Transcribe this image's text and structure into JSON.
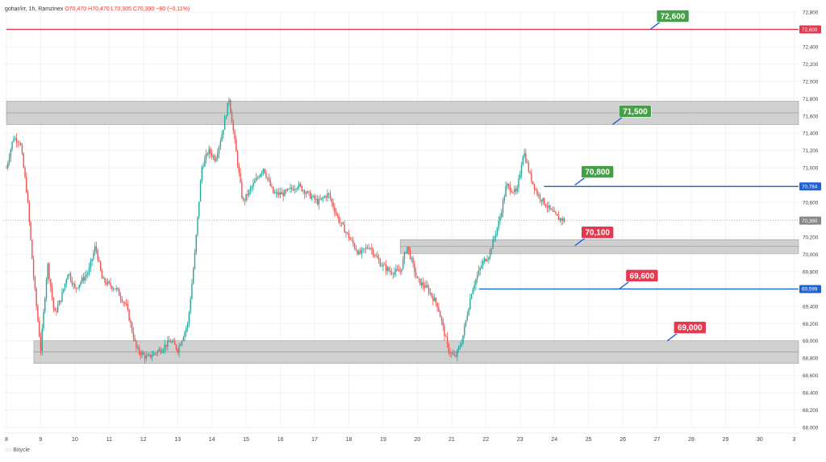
{
  "header": {
    "symbol": "gohar/irr, 1h, Ramzinex",
    "open": "O70,470",
    "high": "H70,470",
    "low": "L70,305",
    "close": "C70,390",
    "change": "−80 (−0.11%)"
  },
  "footer": {
    "brand": "Bitycle"
  },
  "colors": {
    "up": "#26a69a",
    "down": "#ef5350",
    "zone": "#c8c8c8",
    "green_label": "#43a047",
    "red_label": "#e53950",
    "blue_line": "#1e63d6",
    "red_line": "#e53950"
  },
  "chart_data": {
    "type": "candlestick",
    "y_range": [
      68000,
      72800
    ],
    "y_ticks": [
      "72,800",
      "72,600",
      "72,400",
      "72,200",
      "72,000",
      "71,800",
      "71,600",
      "71,400",
      "71,200",
      "71,000",
      "70,800",
      "70,600",
      "70,400",
      "70,200",
      "70,000",
      "69,800",
      "69,600",
      "69,400",
      "69,200",
      "69,000",
      "68,800",
      "68,600",
      "68,400",
      "68,200",
      "68,000"
    ],
    "x_ticks": [
      "8",
      "9",
      "10",
      "11",
      "12",
      "13",
      "14",
      "15",
      "16",
      "17",
      "18",
      "19",
      "20",
      "21",
      "22",
      "23",
      "24",
      "25",
      "26",
      "27",
      "28",
      "29",
      "30",
      "3"
    ],
    "price_tags": [
      {
        "label": "72,600",
        "value": 72600,
        "color": "red"
      },
      {
        "label": "70,784",
        "value": 70784,
        "color": "blue"
      },
      {
        "label": "70,390",
        "value": 70390,
        "color": "gray"
      },
      {
        "label": "69,599",
        "value": 69599,
        "color": "blue"
      }
    ],
    "horizontal_lines": [
      {
        "value": 72600,
        "color": "red",
        "from_day": 8.0
      },
      {
        "value": 70784,
        "from_day": 23.7,
        "color": "blue"
      },
      {
        "value": 69599,
        "from_day": 21.8,
        "color": "blue"
      }
    ],
    "zones": [
      {
        "from_day": 8.0,
        "to_day": 31.2,
        "low": 71500,
        "high": 71770
      },
      {
        "from_day": 19.5,
        "to_day": 31.2,
        "low": 70010,
        "high": 70170
      },
      {
        "from_day": 8.8,
        "to_day": 31.2,
        "low": 68740,
        "high": 69000
      }
    ],
    "level_labels": [
      {
        "text": "72,600",
        "value": 72600,
        "day": 26.8,
        "color": "green"
      },
      {
        "text": "71,500",
        "value": 71500,
        "day": 25.7,
        "color": "green"
      },
      {
        "text": "70,800",
        "value": 70800,
        "day": 24.6,
        "color": "green"
      },
      {
        "text": "70,100",
        "value": 70100,
        "day": 24.6,
        "color": "red"
      },
      {
        "text": "69,600",
        "value": 69600,
        "day": 25.9,
        "color": "red"
      },
      {
        "text": "69,000",
        "value": 69000,
        "day": 27.3,
        "color": "red"
      }
    ],
    "price_path": [
      [
        8.0,
        71000
      ],
      [
        8.2,
        71350
      ],
      [
        8.4,
        71300
      ],
      [
        8.6,
        70700
      ],
      [
        8.8,
        69700
      ],
      [
        9.0,
        68900
      ],
      [
        9.2,
        69900
      ],
      [
        9.4,
        69300
      ],
      [
        9.6,
        69500
      ],
      [
        9.8,
        69800
      ],
      [
        10.0,
        69600
      ],
      [
        10.4,
        69800
      ],
      [
        10.6,
        70100
      ],
      [
        10.8,
        69700
      ],
      [
        11.2,
        69600
      ],
      [
        11.5,
        69400
      ],
      [
        11.8,
        68900
      ],
      [
        12.1,
        68800
      ],
      [
        12.5,
        68900
      ],
      [
        12.8,
        69000
      ],
      [
        13.0,
        68900
      ],
      [
        13.3,
        69200
      ],
      [
        13.5,
        70000
      ],
      [
        13.7,
        71000
      ],
      [
        13.9,
        71200
      ],
      [
        14.1,
        71100
      ],
      [
        14.3,
        71400
      ],
      [
        14.5,
        71800
      ],
      [
        14.7,
        71200
      ],
      [
        14.9,
        70600
      ],
      [
        15.2,
        70800
      ],
      [
        15.5,
        71000
      ],
      [
        15.8,
        70700
      ],
      [
        16.1,
        70700
      ],
      [
        16.5,
        70800
      ],
      [
        16.8,
        70700
      ],
      [
        17.1,
        70600
      ],
      [
        17.4,
        70700
      ],
      [
        17.7,
        70400
      ],
      [
        18.0,
        70200
      ],
      [
        18.3,
        70000
      ],
      [
        18.6,
        70100
      ],
      [
        18.9,
        69900
      ],
      [
        19.2,
        69800
      ],
      [
        19.5,
        69800
      ],
      [
        19.7,
        70100
      ],
      [
        20.0,
        69700
      ],
      [
        20.3,
        69600
      ],
      [
        20.6,
        69400
      ],
      [
        20.9,
        68900
      ],
      [
        21.1,
        68800
      ],
      [
        21.3,
        69000
      ],
      [
        21.6,
        69600
      ],
      [
        21.9,
        69900
      ],
      [
        22.1,
        70000
      ],
      [
        22.4,
        70400
      ],
      [
        22.6,
        70800
      ],
      [
        22.9,
        70700
      ],
      [
        23.1,
        71200
      ],
      [
        23.3,
        70900
      ],
      [
        23.5,
        70700
      ],
      [
        23.7,
        70600
      ],
      [
        23.9,
        70500
      ],
      [
        24.1,
        70420
      ],
      [
        24.3,
        70390
      ]
    ]
  }
}
